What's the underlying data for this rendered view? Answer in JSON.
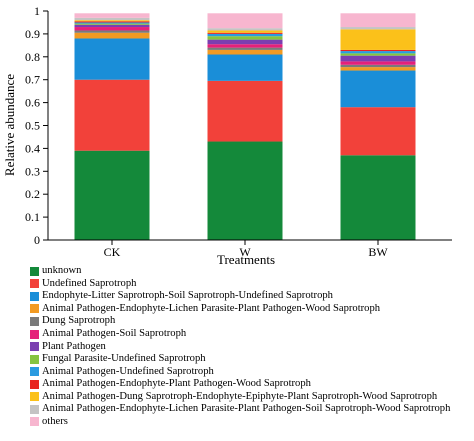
{
  "chart_data": {
    "type": "bar",
    "stacked": true,
    "categories": [
      "CK",
      "W",
      "BW"
    ],
    "xlabel": "Treatments",
    "ylabel": "Relative abundance",
    "ylim": [
      0,
      1
    ],
    "yticks": [
      "0",
      "0.1",
      "0.2",
      "0.3",
      "0.4",
      "0.5",
      "0.6",
      "0.7",
      "0.8",
      "0.9",
      "1"
    ],
    "grid": false,
    "legend_position": "bottom",
    "series": [
      {
        "name": "unknown",
        "color": "#14893a",
        "values": [
          0.39,
          0.43,
          0.37
        ]
      },
      {
        "name": "Undefined Saprotroph",
        "color": "#f2413a",
        "values": [
          0.31,
          0.265,
          0.21
        ]
      },
      {
        "name": "Endophyte-Litter Saprotroph-Soil Saprotroph-Undefined Saprotroph",
        "color": "#1a8ed8",
        "values": [
          0.18,
          0.115,
          0.16
        ]
      },
      {
        "name": "Animal Pathogen-Endophyte-Lichen Parasite-Plant Pathogen-Wood Saprotroph",
        "color": "#f29a22",
        "values": [
          0.025,
          0.02,
          0.015
        ]
      },
      {
        "name": "Dung Saprotroph",
        "color": "#7a7a7a",
        "values": [
          0.01,
          0.01,
          0.01
        ]
      },
      {
        "name": "Animal Pathogen-Soil Saprotroph",
        "color": "#e5207a",
        "values": [
          0.015,
          0.015,
          0.015
        ]
      },
      {
        "name": "Plant Pathogen",
        "color": "#7b3fb0",
        "values": [
          0.01,
          0.02,
          0.025
        ]
      },
      {
        "name": "Fungal Parasite-Undefined Saprotroph",
        "color": "#86c440",
        "values": [
          0.005,
          0.015,
          0.01
        ]
      },
      {
        "name": "Animal Pathogen-Undefined Saprotroph",
        "color": "#2a9be0",
        "values": [
          0.005,
          0.01,
          0.01
        ]
      },
      {
        "name": "Animal Pathogen-Endophyte-Plant Pathogen-Wood Saprotroph",
        "color": "#e8231e",
        "values": [
          0.005,
          0.005,
          0.005
        ]
      },
      {
        "name": "Animal Pathogen-Dung Saprotroph-Endophyte-Epiphyte-Plant Saprotroph-Wood Saprotroph",
        "color": "#fbc11a",
        "values": [
          0.005,
          0.01,
          0.09
        ]
      },
      {
        "name": "Animal Pathogen-Endophyte-Lichen Parasite-Plant Pathogen-Soil Saprotroph-Wood Saprotroph",
        "color": "#c4c4c4",
        "values": [
          0.01,
          0.01,
          0.01
        ]
      },
      {
        "name": "others",
        "color": "#f7b6cf",
        "values": [
          0.02,
          0.065,
          0.06
        ]
      }
    ]
  }
}
